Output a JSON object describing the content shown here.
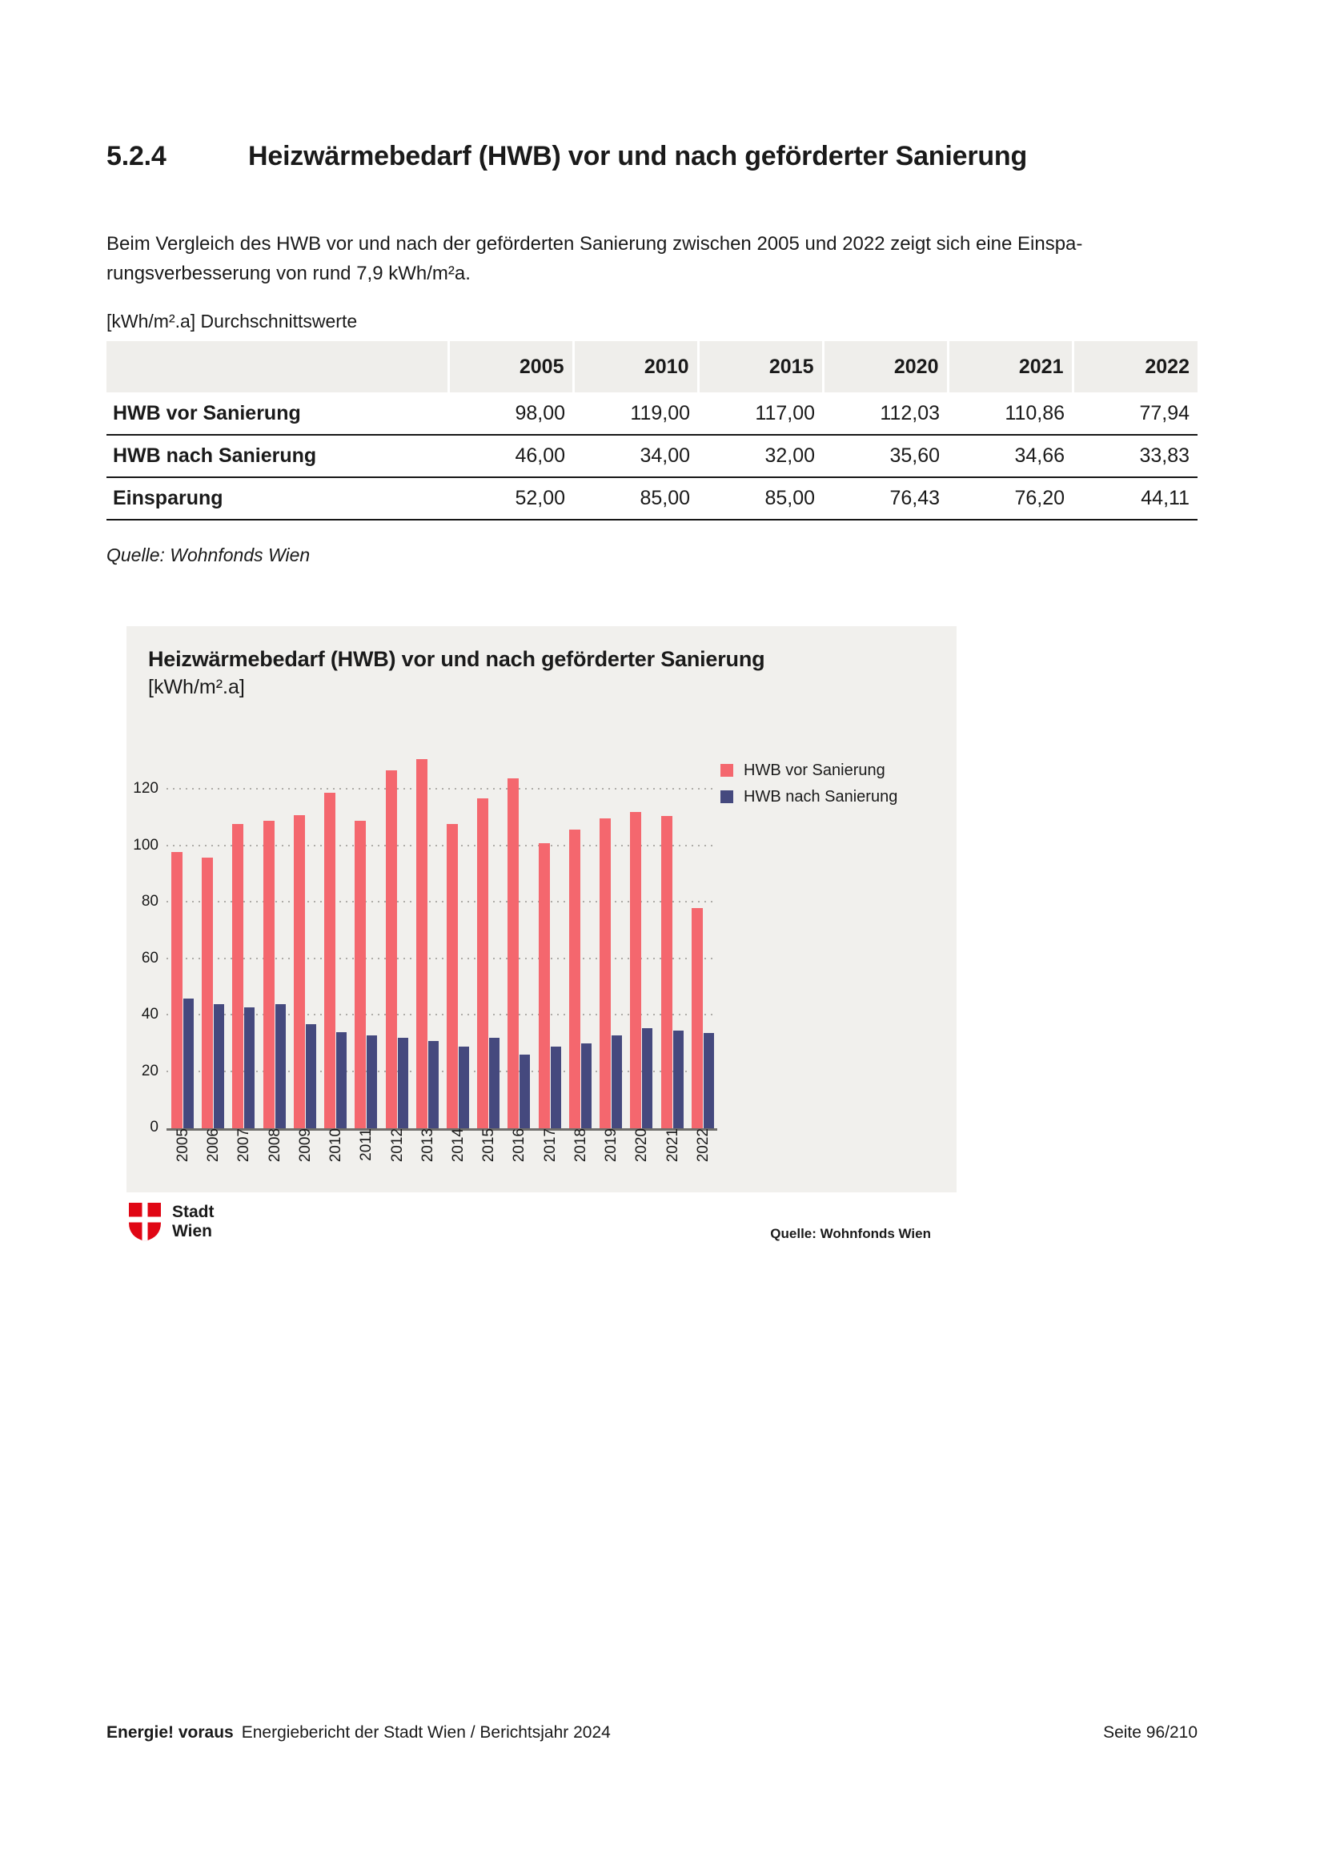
{
  "heading": {
    "number": "5.2.4",
    "title": "Heizwärmebedarf (HWB) vor und nach geförderter Sanierung"
  },
  "intro": {
    "line1": "Beim Vergleich des HWB vor und nach der geförderten Sanierung zwischen 2005 und 2022 zeigt sich eine Einspa-",
    "line2": "rungsverbesserung von rund 7,9 kWh/m²a."
  },
  "table": {
    "unit_label": "[kWh/m².a] Durchschnittswerte",
    "columns": [
      "2005",
      "2010",
      "2015",
      "2020",
      "2021",
      "2022"
    ],
    "rows": [
      {
        "label": "HWB vor Sanierung",
        "values": [
          "98,00",
          "119,00",
          "117,00",
          "112,03",
          "110,86",
          "77,94"
        ]
      },
      {
        "label": "HWB nach Sanierung",
        "values": [
          "46,00",
          "34,00",
          "32,00",
          "35,60",
          "34,66",
          "33,83"
        ]
      },
      {
        "label": "Einsparung",
        "values": [
          "52,00",
          "85,00",
          "85,00",
          "76,43",
          "76,20",
          "44,11"
        ]
      }
    ],
    "source": "Quelle: Wohnfonds Wien"
  },
  "chart_data": {
    "type": "bar",
    "title": "Heizwärmebedarf (HWB) vor und nach geförderter Sanierung",
    "subtitle": "[kWh/m².a]",
    "categories": [
      "2005",
      "2006",
      "2007",
      "2008",
      "2009",
      "2010",
      "2011",
      "2012",
      "2013",
      "2014",
      "2015",
      "2016",
      "2017",
      "2018",
      "2019",
      "2020",
      "2021",
      "2022"
    ],
    "series": [
      {
        "name": "HWB vor Sanierung",
        "color": "#f4676e",
        "values": [
          98,
          96,
          108,
          109,
          111,
          119,
          109,
          127,
          131,
          108,
          117,
          124,
          101,
          106,
          110,
          112.03,
          110.86,
          77.94
        ]
      },
      {
        "name": "HWB nach Sanierung",
        "color": "#45497e",
        "values": [
          46,
          44,
          43,
          44,
          37,
          34,
          33,
          32,
          31,
          29,
          32,
          26,
          29,
          30,
          33,
          35.6,
          34.66,
          33.83
        ]
      }
    ],
    "yticks": [
      0,
      20,
      40,
      60,
      80,
      100,
      120
    ],
    "ylim": [
      0,
      134
    ],
    "grid": "horizontal-dotted",
    "legend_position": "top-right",
    "source": "Quelle: Wohnfonds Wien"
  },
  "logo": {
    "line1": "Stadt",
    "line2": "Wien",
    "shield_color": "#e00614"
  },
  "footer": {
    "brand": "Energie! voraus",
    "title": "Energiebericht der Stadt Wien / Berichtsjahr 2024",
    "page": "Seite 96/210"
  }
}
